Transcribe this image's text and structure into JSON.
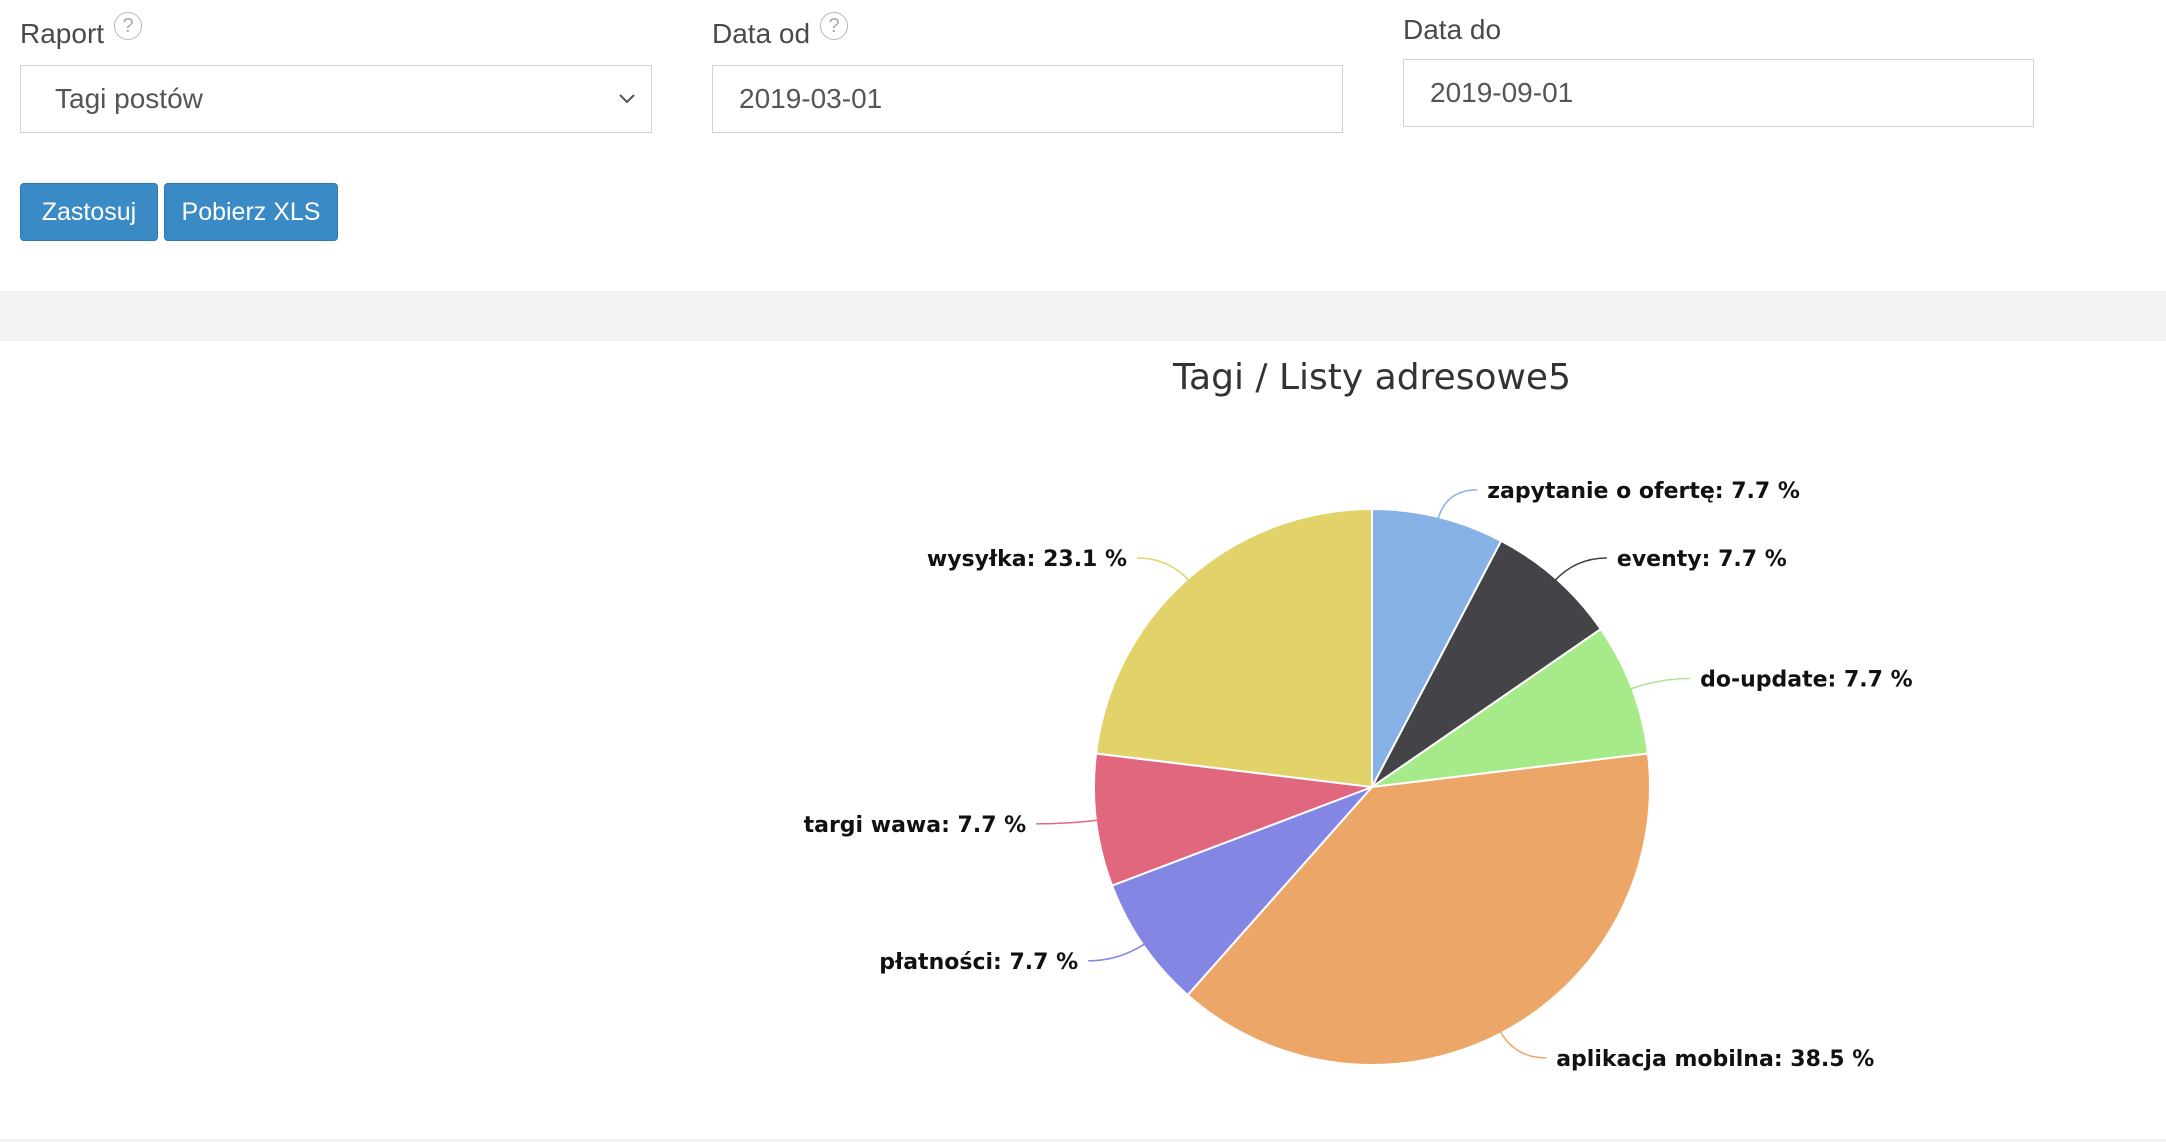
{
  "form": {
    "report": {
      "label": "Raport",
      "help": "?",
      "value": "Tagi postów"
    },
    "date_from": {
      "label": "Data od",
      "help": "?",
      "value": "2019-03-01"
    },
    "date_to": {
      "label": "Data do",
      "value": "2019-09-01"
    }
  },
  "buttons": {
    "apply": "Zastosuj",
    "download": "Pobierz XLS"
  },
  "colors": {
    "primary_button": "#3a8ac6",
    "band": "#f3f3f3"
  },
  "chart_data": {
    "type": "pie",
    "title": "Tagi / Listy adresowe5",
    "slices": [
      {
        "label": "zapytanie o ofertę",
        "value": 7.7,
        "color": "#87b2e6"
      },
      {
        "label": "eventy",
        "value": 7.7,
        "color": "#434348"
      },
      {
        "label": "do-update",
        "value": 7.7,
        "color": "#a6ea89"
      },
      {
        "label": "aplikacja mobilna",
        "value": 38.5,
        "color": "#eca667"
      },
      {
        "label": "płatności",
        "value": 7.7,
        "color": "#8387e3"
      },
      {
        "label": "targi wawa",
        "value": 7.7,
        "color": "#e1677e"
      },
      {
        "label": "wysyłka",
        "value": 23.1,
        "color": "#e2d26a"
      }
    ],
    "value_suffix": " %"
  }
}
